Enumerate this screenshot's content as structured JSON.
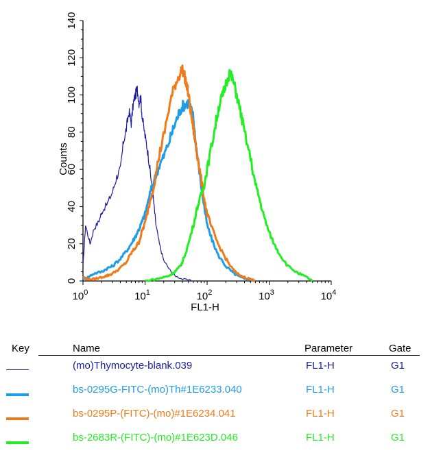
{
  "chart_data": {
    "type": "line",
    "title": "",
    "xlabel": "FL1-H",
    "ylabel": "Counts",
    "xscale": "log",
    "xlim": [
      1,
      10000
    ],
    "ylim": [
      0,
      140
    ],
    "x_ticks": [
      {
        "base": "10",
        "exp": "0"
      },
      {
        "base": "10",
        "exp": "1"
      },
      {
        "base": "10",
        "exp": "2"
      },
      {
        "base": "10",
        "exp": "3"
      },
      {
        "base": "10",
        "exp": "4"
      }
    ],
    "y_ticks": [
      "0",
      "20",
      "40",
      "60",
      "80",
      "100",
      "120",
      "140"
    ],
    "grid": false,
    "series": [
      {
        "name": "(mo)Thymocyte-blank.039",
        "color": "#1a1a9e",
        "x": [
          1.0,
          1.1,
          1.3,
          1.5,
          1.8,
          2.0,
          2.5,
          3.0,
          3.5,
          4.0,
          4.5,
          5.0,
          5.5,
          6.0,
          6.5,
          7.0,
          7.5,
          8.0,
          8.5,
          9.0,
          10.0,
          11.0,
          12.0,
          13.0,
          14.0,
          15.0,
          17.0,
          20.0,
          25.0,
          30.0,
          40.0,
          60.0
        ],
        "y": [
          8,
          30,
          20,
          28,
          32,
          37,
          42,
          48,
          56,
          60,
          75,
          82,
          91,
          85,
          96,
          100,
          103,
          96,
          99,
          88,
          78,
          70,
          60,
          50,
          40,
          30,
          20,
          11,
          6,
          3,
          1,
          0
        ]
      },
      {
        "name": "bs-0295G-FITC-(mo)Th#1E6233.040",
        "color": "#1e9ce8",
        "x": [
          1.0,
          1.2,
          1.5,
          2.0,
          2.5,
          3.0,
          4.0,
          5.0,
          6.0,
          7.0,
          8.0,
          9.0,
          10.0,
          12.0,
          14.0,
          17.0,
          20.0,
          25.0,
          30.0,
          35.0,
          40.0,
          45.0,
          50.0,
          55.0,
          60.0,
          65.0,
          70.0,
          80.0,
          90.0,
          100.0,
          120.0,
          150.0,
          200.0,
          250.0,
          300.0,
          400.0,
          500.0,
          600.0
        ],
        "y": [
          1,
          2,
          4,
          5,
          7,
          8,
          12,
          16,
          20,
          24,
          28,
          32,
          36,
          47,
          54,
          62,
          67,
          76,
          84,
          90,
          94,
          95,
          96,
          92,
          88,
          75,
          67,
          52,
          40,
          30,
          22,
          14,
          8,
          5,
          3,
          1,
          1,
          0
        ]
      },
      {
        "name": "bs-0295P-(FITC)-(mo)#1E6234.041",
        "color": "#f07a1a",
        "x": [
          1.0,
          1.2,
          1.5,
          2.0,
          2.5,
          3.0,
          4.0,
          5.0,
          6.0,
          7.0,
          8.0,
          9.0,
          10.0,
          12.0,
          14.0,
          17.0,
          20.0,
          25.0,
          30.0,
          35.0,
          40.0,
          45.0,
          50.0,
          55.0,
          60.0,
          65.0,
          70.0,
          80.0,
          90.0,
          100.0,
          120.0,
          150.0,
          200.0,
          250.0,
          300.0,
          400.0,
          500.0,
          600.0
        ],
        "y": [
          2,
          1,
          1,
          2,
          3,
          4,
          7,
          10,
          15,
          18,
          21,
          27,
          31,
          43,
          52,
          68,
          78,
          95,
          105,
          110,
          114,
          108,
          100,
          90,
          82,
          74,
          67,
          55,
          44,
          36,
          28,
          20,
          12,
          7,
          4,
          2,
          1,
          0
        ]
      },
      {
        "name": "bs-2683R-(FITC)-(mo)#1E623D.046",
        "color": "#22ee22",
        "x": [
          10.0,
          15.0,
          20.0,
          25.0,
          30.0,
          35.0,
          40.0,
          50.0,
          60.0,
          70.0,
          80.0,
          90.0,
          100.0,
          120.0,
          140.0,
          160.0,
          180.0,
          200.0,
          230.0,
          260.0,
          300.0,
          350.0,
          400.0,
          500.0,
          600.0,
          700.0,
          800.0,
          1000.0,
          1200.0,
          1500.0,
          2000.0,
          3000.0,
          4000.0,
          5000.0
        ],
        "y": [
          0,
          1,
          2,
          3,
          5,
          7,
          10,
          20,
          30,
          40,
          46,
          52,
          60,
          74,
          86,
          96,
          100,
          106,
          112,
          108,
          100,
          90,
          80,
          66,
          52,
          44,
          36,
          26,
          20,
          14,
          8,
          4,
          2,
          0
        ]
      }
    ]
  },
  "legend": {
    "headers": {
      "key": "Key",
      "name": "Name",
      "parameter": "Parameter",
      "gate": "Gate"
    },
    "rows": [
      {
        "name": "(mo)Thymocyte-blank.039",
        "parameter": "FL1-H",
        "gate": "G1",
        "color": "#1a1a9e"
      },
      {
        "name": "bs-0295G-FITC-(mo)Th#1E6233.040",
        "parameter": "FL1-H",
        "gate": "G1",
        "color": "#1e9ce8"
      },
      {
        "name": "bs-0295P-(FITC)-(mo)#1E6234.041",
        "parameter": "FL1-H",
        "gate": "G1",
        "color": "#f07a1a"
      },
      {
        "name": "bs-2683R-(FITC)-(mo)#1E623D.046",
        "parameter": "FL1-H",
        "gate": "G1",
        "color": "#22ee22"
      }
    ]
  }
}
